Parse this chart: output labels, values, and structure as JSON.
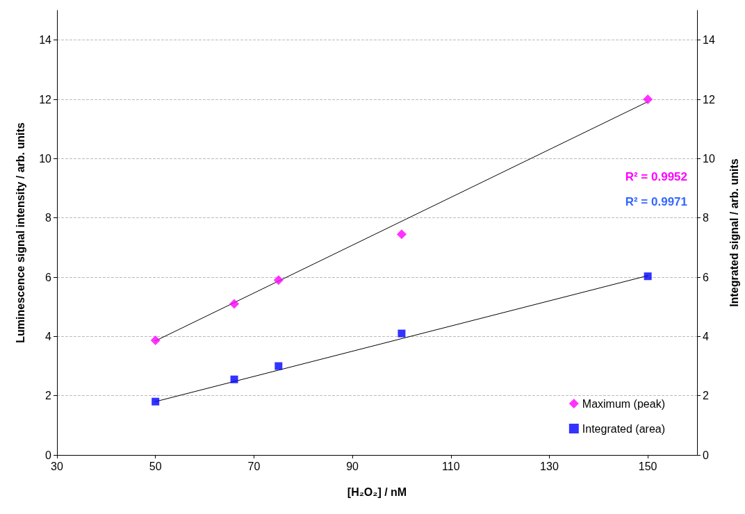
{
  "chart_data": {
    "type": "scatter",
    "xlabel": "[H₂O₂] / nM",
    "ylabel": "Luminescence signal intensity / arb. units",
    "y2label": "Integrated signal / arb. units",
    "xlim": [
      30,
      160
    ],
    "xticks": [
      30,
      50,
      70,
      90,
      110,
      130,
      150
    ],
    "ylim": [
      0,
      15
    ],
    "yticks": [
      0,
      2,
      4,
      6,
      8,
      10,
      12,
      14
    ],
    "y2lim": [
      0,
      15
    ],
    "y2ticks": [
      0,
      2,
      4,
      6,
      8,
      10,
      12,
      14
    ],
    "grid": "y",
    "legend": "bottom right",
    "annotations": [
      "R² = 0.9952",
      "R² = 0.9971"
    ],
    "series": [
      {
        "name": "Maximum (peak)",
        "color": "#ff00ff",
        "marker": "diamond",
        "x": [
          50,
          66,
          75,
          100,
          150
        ],
        "values": [
          3.87,
          5.1,
          5.9,
          7.45,
          12.0
        ]
      },
      {
        "name": "Integrated (area)",
        "color": "#0000ff",
        "marker": "square",
        "x": [
          50,
          66,
          75,
          100,
          150
        ],
        "values": [
          1.8,
          2.55,
          3.0,
          4.1,
          6.03
        ]
      },
      {
        "type": "line",
        "color": "#000000",
        "marker": "none",
        "x": [
          50,
          150
        ],
        "values": [
          3.85,
          11.92
        ]
      },
      {
        "type": "line",
        "color": "#000000",
        "marker": "none",
        "x": [
          50,
          150
        ],
        "values": [
          1.8,
          6.05
        ]
      }
    ]
  }
}
